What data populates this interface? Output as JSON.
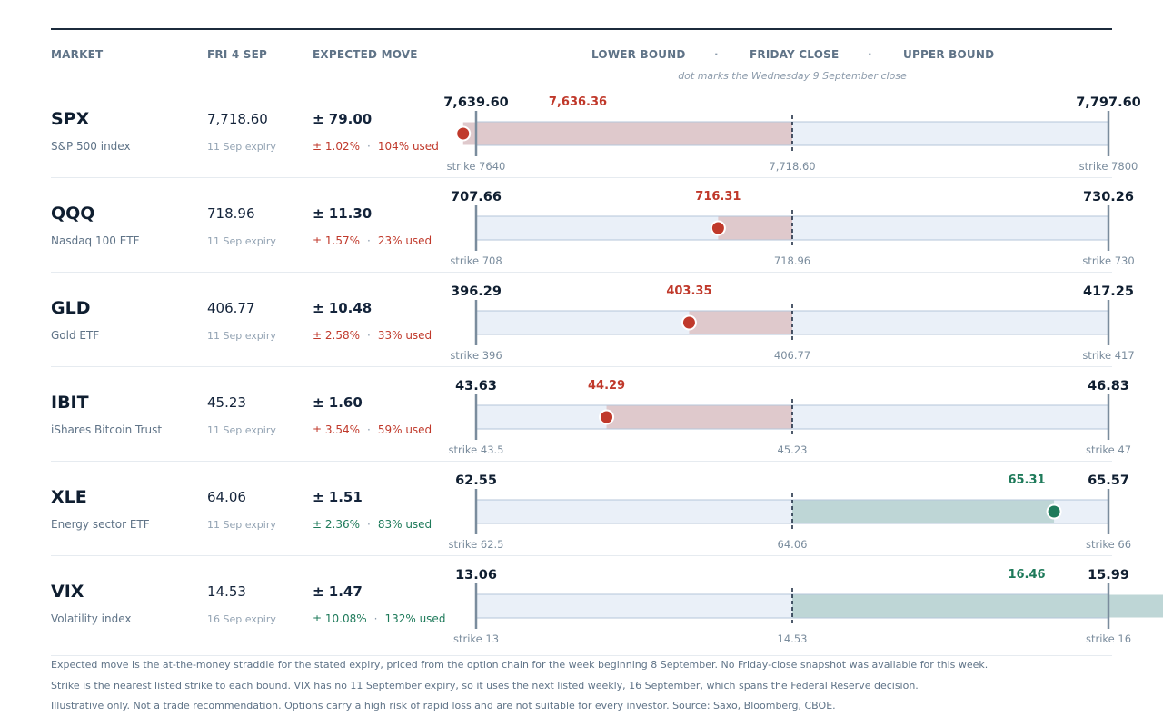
{
  "header": {
    "market": "MARKET",
    "date": "FRI 4 SEP",
    "expected_move": "EXPECTED MOVE",
    "lower_bound": "LOWER BOUND",
    "friday_close": "FRIDAY CLOSE",
    "upper_bound": "UPPER BOUND",
    "separator": "·",
    "subtitle": "dot marks the Wednesday 9 September close"
  },
  "colors": {
    "down": "#c0392b",
    "up": "#1e7a5a",
    "track_fill": "#eaf0f8",
    "track_stroke": "#b4c6da",
    "down_band": "#dfc9cc",
    "up_band": "#bed6d6",
    "bound_line": "#7a8c9d"
  },
  "chart_data": {
    "type": "range",
    "rows": [
      {
        "ticker": "SPX",
        "description": "S&P 500 index",
        "close": 7718.6,
        "close_label": "7,718.60",
        "move_label": "± 79.00",
        "expiry": "11 Sep expiry",
        "pct_label": "± 1.02%",
        "used_label": "104% used",
        "used": 1.04,
        "lower": 7639.6,
        "lower_label": "7,639.60",
        "upper": 7797.6,
        "upper_label": "7,797.60",
        "wed": 7636.36,
        "wed_label": "7,636.36",
        "direction": "down",
        "strike_low": "strike 7640",
        "strike_high": "strike 7800"
      },
      {
        "ticker": "QQQ",
        "description": "Nasdaq 100 ETF",
        "close": 718.96,
        "close_label": "718.96",
        "move_label": "± 11.30",
        "expiry": "11 Sep expiry",
        "pct_label": "± 1.57%",
        "used_label": "23% used",
        "used": 0.23,
        "lower": 707.66,
        "lower_label": "707.66",
        "upper": 730.26,
        "upper_label": "730.26",
        "wed": 716.31,
        "wed_label": "716.31",
        "direction": "down",
        "strike_low": "strike 708",
        "strike_high": "strike 730"
      },
      {
        "ticker": "GLD",
        "description": "Gold ETF",
        "close": 406.77,
        "close_label": "406.77",
        "move_label": "± 10.48",
        "expiry": "11 Sep expiry",
        "pct_label": "± 2.58%",
        "used_label": "33% used",
        "used": 0.33,
        "lower": 396.29,
        "lower_label": "396.29",
        "upper": 417.25,
        "upper_label": "417.25",
        "wed": 403.35,
        "wed_label": "403.35",
        "direction": "down",
        "strike_low": "strike 396",
        "strike_high": "strike 417"
      },
      {
        "ticker": "IBIT",
        "description": "iShares Bitcoin Trust",
        "close": 45.23,
        "close_label": "45.23",
        "move_label": "± 1.60",
        "expiry": "11 Sep expiry",
        "pct_label": "± 3.54%",
        "used_label": "59% used",
        "used": 0.59,
        "lower": 43.63,
        "lower_label": "43.63",
        "upper": 46.83,
        "upper_label": "46.83",
        "wed": 44.29,
        "wed_label": "44.29",
        "direction": "down",
        "strike_low": "strike 43.5",
        "strike_high": "strike 47"
      },
      {
        "ticker": "XLE",
        "description": "Energy sector ETF",
        "close": 64.06,
        "close_label": "64.06",
        "move_label": "± 1.51",
        "expiry": "11 Sep expiry",
        "pct_label": "± 2.36%",
        "used_label": "83% used",
        "used": 0.83,
        "lower": 62.55,
        "lower_label": "62.55",
        "upper": 65.57,
        "upper_label": "65.57",
        "wed": 65.31,
        "wed_label": "65.31",
        "direction": "up",
        "strike_low": "strike 62.5",
        "strike_high": "strike 66"
      },
      {
        "ticker": "VIX",
        "description": "Volatility index",
        "close": 14.53,
        "close_label": "14.53",
        "move_label": "± 1.47",
        "expiry": "16 Sep expiry",
        "pct_label": "± 10.08%",
        "used_label": "132% used",
        "used": 1.32,
        "lower": 13.06,
        "lower_label": "13.06",
        "upper": 15.99,
        "upper_label": "15.99",
        "wed": 16.46,
        "wed_label": "16.46",
        "direction": "up",
        "strike_low": "strike 13",
        "strike_high": "strike 16"
      }
    ]
  },
  "footer": [
    "Expected move is the at-the-money straddle for the stated expiry, priced from the option chain for the week beginning 8 September. No Friday-close snapshot was available for this week.",
    "Strike is the nearest listed strike to each bound. VIX has no 11 September expiry, so it uses the next listed weekly, 16 September, which spans the Federal Reserve decision.",
    "Illustrative only. Not a trade recommendation. Options carry a high risk of rapid loss and are not suitable for every investor. Source: Saxo, Bloomberg, CBOE."
  ]
}
